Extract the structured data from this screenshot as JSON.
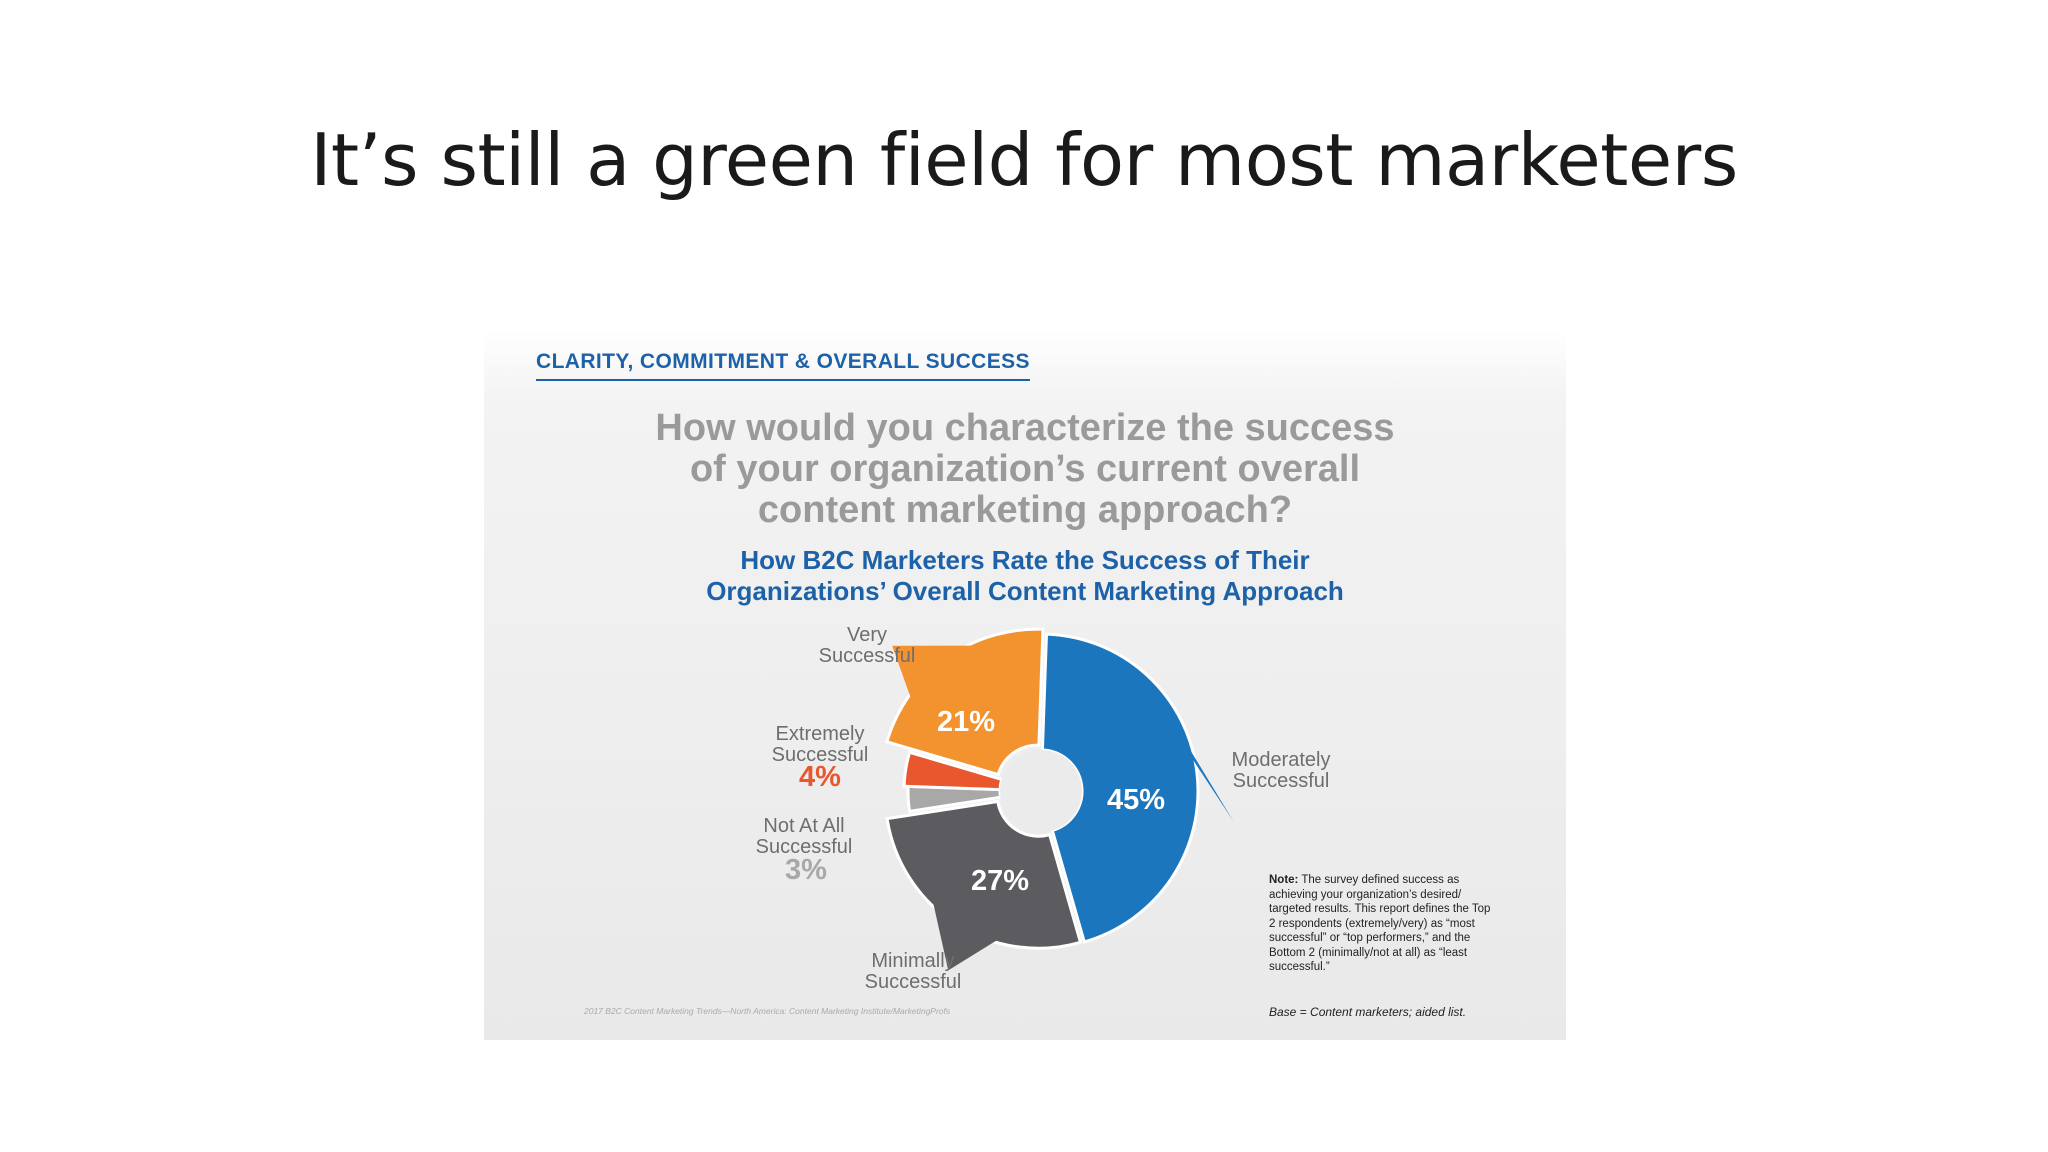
{
  "slide": {
    "title": "It’s still a green field for most marketers"
  },
  "infographic": {
    "section_header": "CLARITY, COMMITMENT & OVERALL SUCCESS",
    "question_lines": [
      "How would you characterize the success",
      "of your organization’s current overall",
      "content marketing approach?"
    ],
    "subtitle_lines": [
      "How B2C Marketers Rate the Success of Their",
      "Organizations’ Overall Content Marketing Approach"
    ],
    "note_label": "Note:",
    "note_text": "The survey defined success as achieving your organization’s desired/ targeted results. This report defines the Top 2 respondents (extremely/very) as “most successful” or “top performers,” and the Bottom 2 (minimally/not at all) as “least successful.”",
    "base": "Base = Content marketers; aided list.",
    "source": "2017 B2C Content Marketing Trends—North America: Content Marketing Institute/MarketingProfs"
  },
  "chart_data": {
    "type": "pie",
    "title": "How B2C Marketers Rate the Success of Their Organizations’ Overall Content Marketing Approach",
    "unit": "%",
    "slices": [
      {
        "label_lines": [
          "Moderately",
          "Successful"
        ],
        "value": 45,
        "display": "45%",
        "color": "#1b76be"
      },
      {
        "label_lines": [
          "Minimally",
          "Successful"
        ],
        "value": 27,
        "display": "27%",
        "color": "#5c5c60"
      },
      {
        "label_lines": [
          "Not At All",
          "Successful"
        ],
        "value": 3,
        "display": "3%",
        "color": "#a8a8a8"
      },
      {
        "label_lines": [
          "Extremely",
          "Successful"
        ],
        "value": 4,
        "display": "4%",
        "color": "#e8572d"
      },
      {
        "label_lines": [
          "Very",
          "Successful"
        ],
        "value": 21,
        "display": "21%",
        "color": "#f29330"
      }
    ]
  }
}
